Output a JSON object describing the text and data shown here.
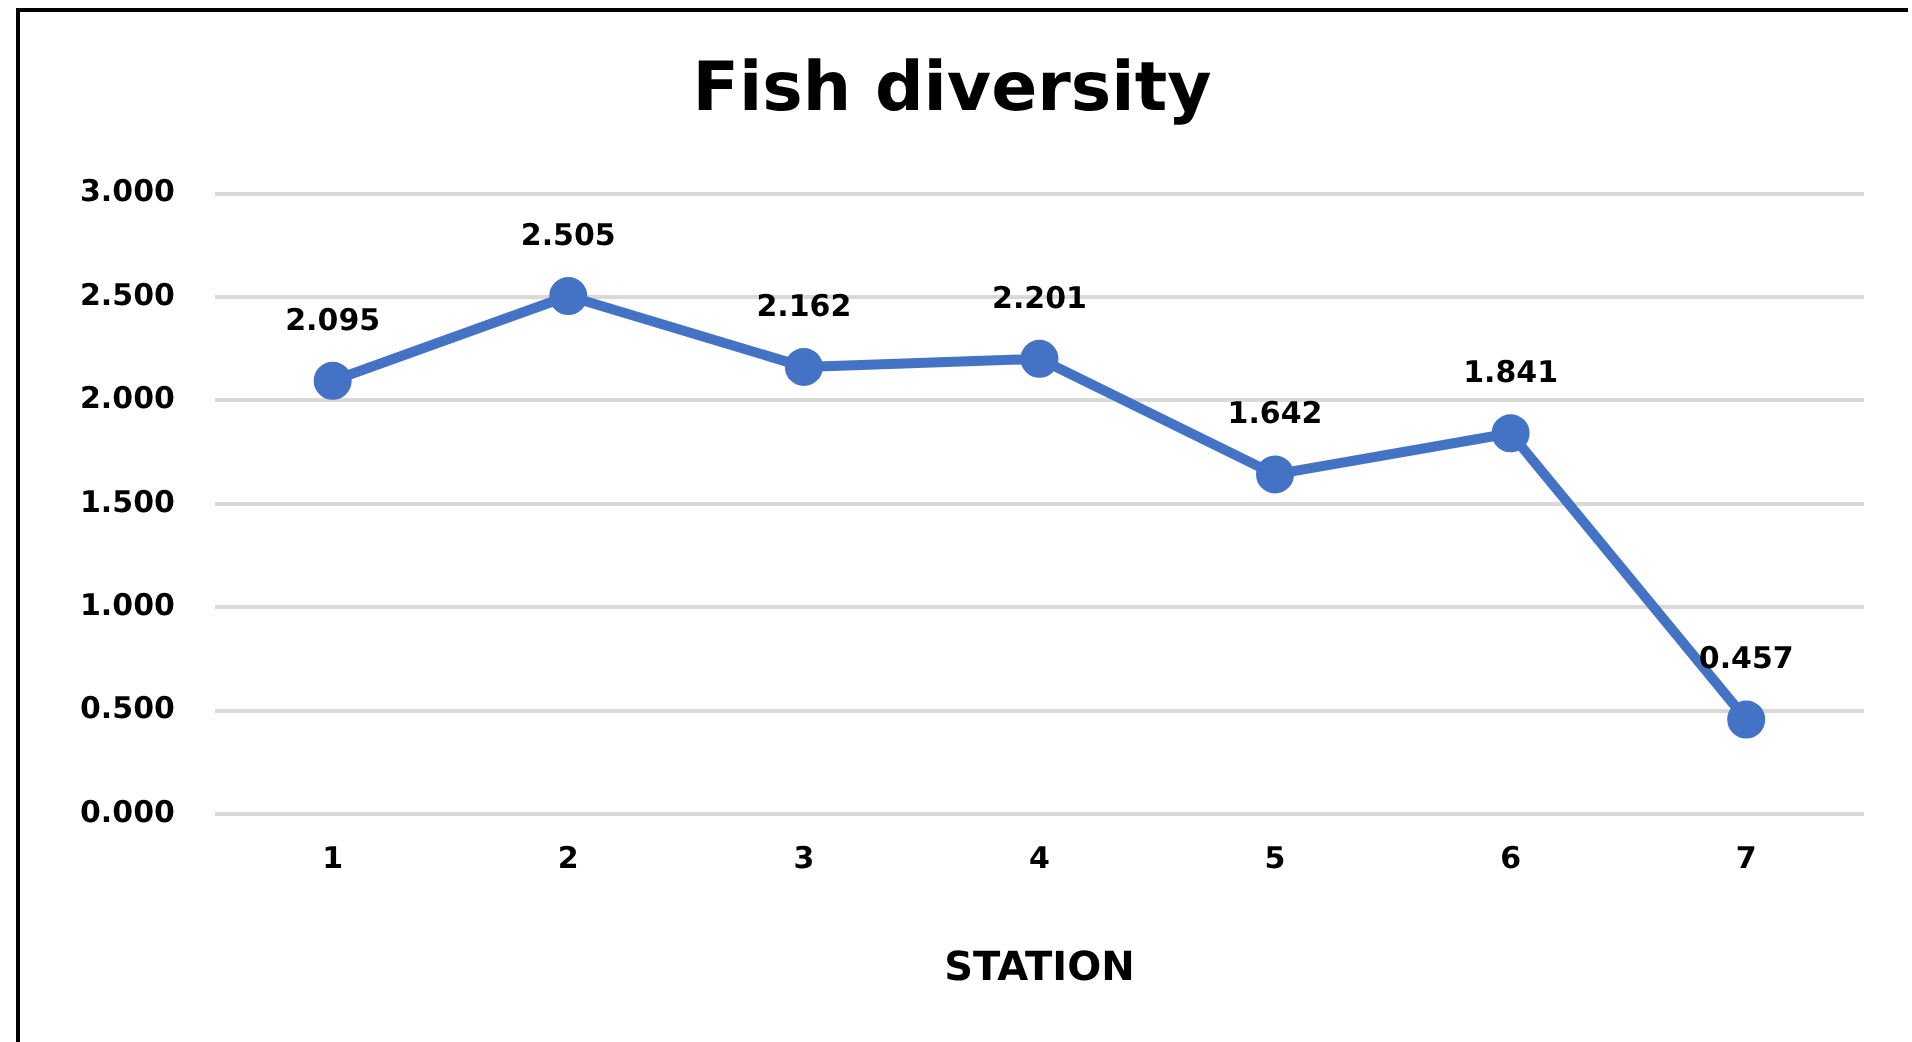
{
  "chart_data": {
    "type": "line",
    "title": "Fish diversity",
    "xlabel": "STATION",
    "categories": [
      "1",
      "2",
      "3",
      "4",
      "5",
      "6",
      "7"
    ],
    "series": [
      {
        "color": "#4472c4",
        "values": [
          2.095,
          2.505,
          2.162,
          2.201,
          1.642,
          1.841,
          0.457
        ]
      }
    ],
    "ylim": [
      0,
      3
    ],
    "yticks": [
      {
        "value": 0,
        "label": "0.000"
      },
      {
        "value": 0.5,
        "label": "0.500"
      },
      {
        "value": 1,
        "label": "1.000"
      },
      {
        "value": 1.5,
        "label": "1.500"
      },
      {
        "value": 2,
        "label": "2.000"
      },
      {
        "value": 2.5,
        "label": "2.500"
      },
      {
        "value": 3,
        "label": "3.000"
      }
    ],
    "grid": "y",
    "legend": false,
    "marker": "circle",
    "line_style": "solid",
    "data_labels": true
  }
}
